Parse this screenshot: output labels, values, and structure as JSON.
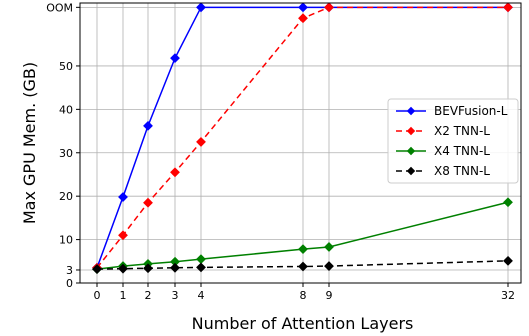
{
  "chart_data": {
    "type": "line",
    "title": "",
    "xlabel": "Number of Attention Layers",
    "ylabel": "Max GPU Mem. (GB)",
    "x_ticks": [
      0,
      1,
      2,
      3,
      4,
      8,
      9,
      32
    ],
    "y_ticks": [
      {
        "value": 0,
        "label": "0"
      },
      {
        "value": 3,
        "label": "3"
      },
      {
        "value": 10,
        "label": "10"
      },
      {
        "value": 20,
        "label": "20"
      },
      {
        "value": 30,
        "label": "30"
      },
      {
        "value": 40,
        "label": "40"
      },
      {
        "value": 50,
        "label": "50"
      },
      {
        "value": 63.5,
        "label": "OOM"
      }
    ],
    "ylim": [
      0,
      64.5
    ],
    "x_scale": "categorical-nonuniform",
    "grid": true,
    "legend_position": "right",
    "series": [
      {
        "name": "BEVFusion-L",
        "color": "#0000ff",
        "line_style": "solid",
        "marker": "diamond",
        "x": [
          0,
          1,
          2,
          3,
          4,
          8,
          9,
          32
        ],
        "y": [
          3.5,
          19.8,
          36.2,
          51.8,
          63.5,
          63.5,
          63.5,
          63.5
        ]
      },
      {
        "name": "X2 TNN-L",
        "color": "#ff0000",
        "line_style": "dashed",
        "marker": "diamond",
        "x": [
          0,
          1,
          2,
          3,
          4,
          8,
          9,
          32
        ],
        "y": [
          3.5,
          11.0,
          18.5,
          25.5,
          32.5,
          61.0,
          63.5,
          63.5
        ]
      },
      {
        "name": "X4 TNN-L",
        "color": "#008000",
        "line_style": "solid",
        "marker": "diamond",
        "x": [
          0,
          1,
          2,
          3,
          4,
          8,
          9,
          32
        ],
        "y": [
          3.2,
          3.9,
          4.4,
          4.9,
          5.5,
          7.8,
          8.3,
          18.6
        ]
      },
      {
        "name": "X8 TNN-L",
        "color": "#000000",
        "line_style": "dashed",
        "marker": "diamond",
        "x": [
          0,
          1,
          2,
          3,
          4,
          8,
          9,
          32
        ],
        "y": [
          3.2,
          3.3,
          3.4,
          3.5,
          3.6,
          3.8,
          3.9,
          5.1
        ]
      }
    ]
  }
}
